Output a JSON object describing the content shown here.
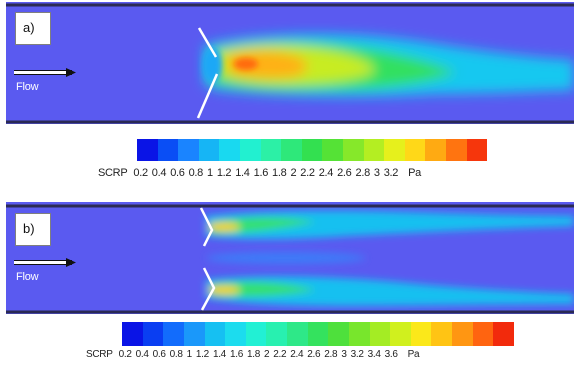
{
  "panels": [
    {
      "label": "a)",
      "flow_label": "Flow"
    },
    {
      "label": "b)",
      "flow_label": "Flow"
    }
  ],
  "colorbars": [
    {
      "label": "SCRP",
      "ticks": [
        "0.2",
        "0.4",
        "0.6",
        "0.8",
        "1",
        "1.2",
        "1.4",
        "1.6",
        "1.8",
        "2",
        "2.2",
        "2.4",
        "2.6",
        "2.8",
        "3",
        "3.2"
      ],
      "unit": "Pa",
      "colors": [
        "#0a14e6",
        "#0a4ef5",
        "#1a84ff",
        "#16b5f5",
        "#19d9f0",
        "#22f0d0",
        "#2cf0a6",
        "#2ee87a",
        "#33e050",
        "#55e236",
        "#86e82a",
        "#b4ee22",
        "#e6f01c",
        "#ffd818",
        "#ffaa12",
        "#ff7410",
        "#f6360c"
      ]
    },
    {
      "label": "SCRP",
      "ticks": [
        "0.2",
        "0.4",
        "0.6",
        "0.8",
        "1",
        "1.2",
        "1.4",
        "1.6",
        "1.8",
        "2",
        "2.2",
        "2.4",
        "2.6",
        "2.8",
        "3",
        "3.2",
        "3.4",
        "3.6"
      ],
      "unit": "Pa",
      "colors": [
        "#0a14e6",
        "#0a3ef2",
        "#126cfc",
        "#1a98fa",
        "#16c0f2",
        "#1cdcee",
        "#22f0d4",
        "#28f0b0",
        "#2ee888",
        "#34e25e",
        "#4ee03c",
        "#78e62c",
        "#a4ec24",
        "#d0f01e",
        "#fbe81a",
        "#ffc414",
        "#ff9612",
        "#ff6410",
        "#f22a0c"
      ]
    }
  ],
  "colors": {
    "background": "#5a5af0",
    "wall": "#2a2a55"
  }
}
